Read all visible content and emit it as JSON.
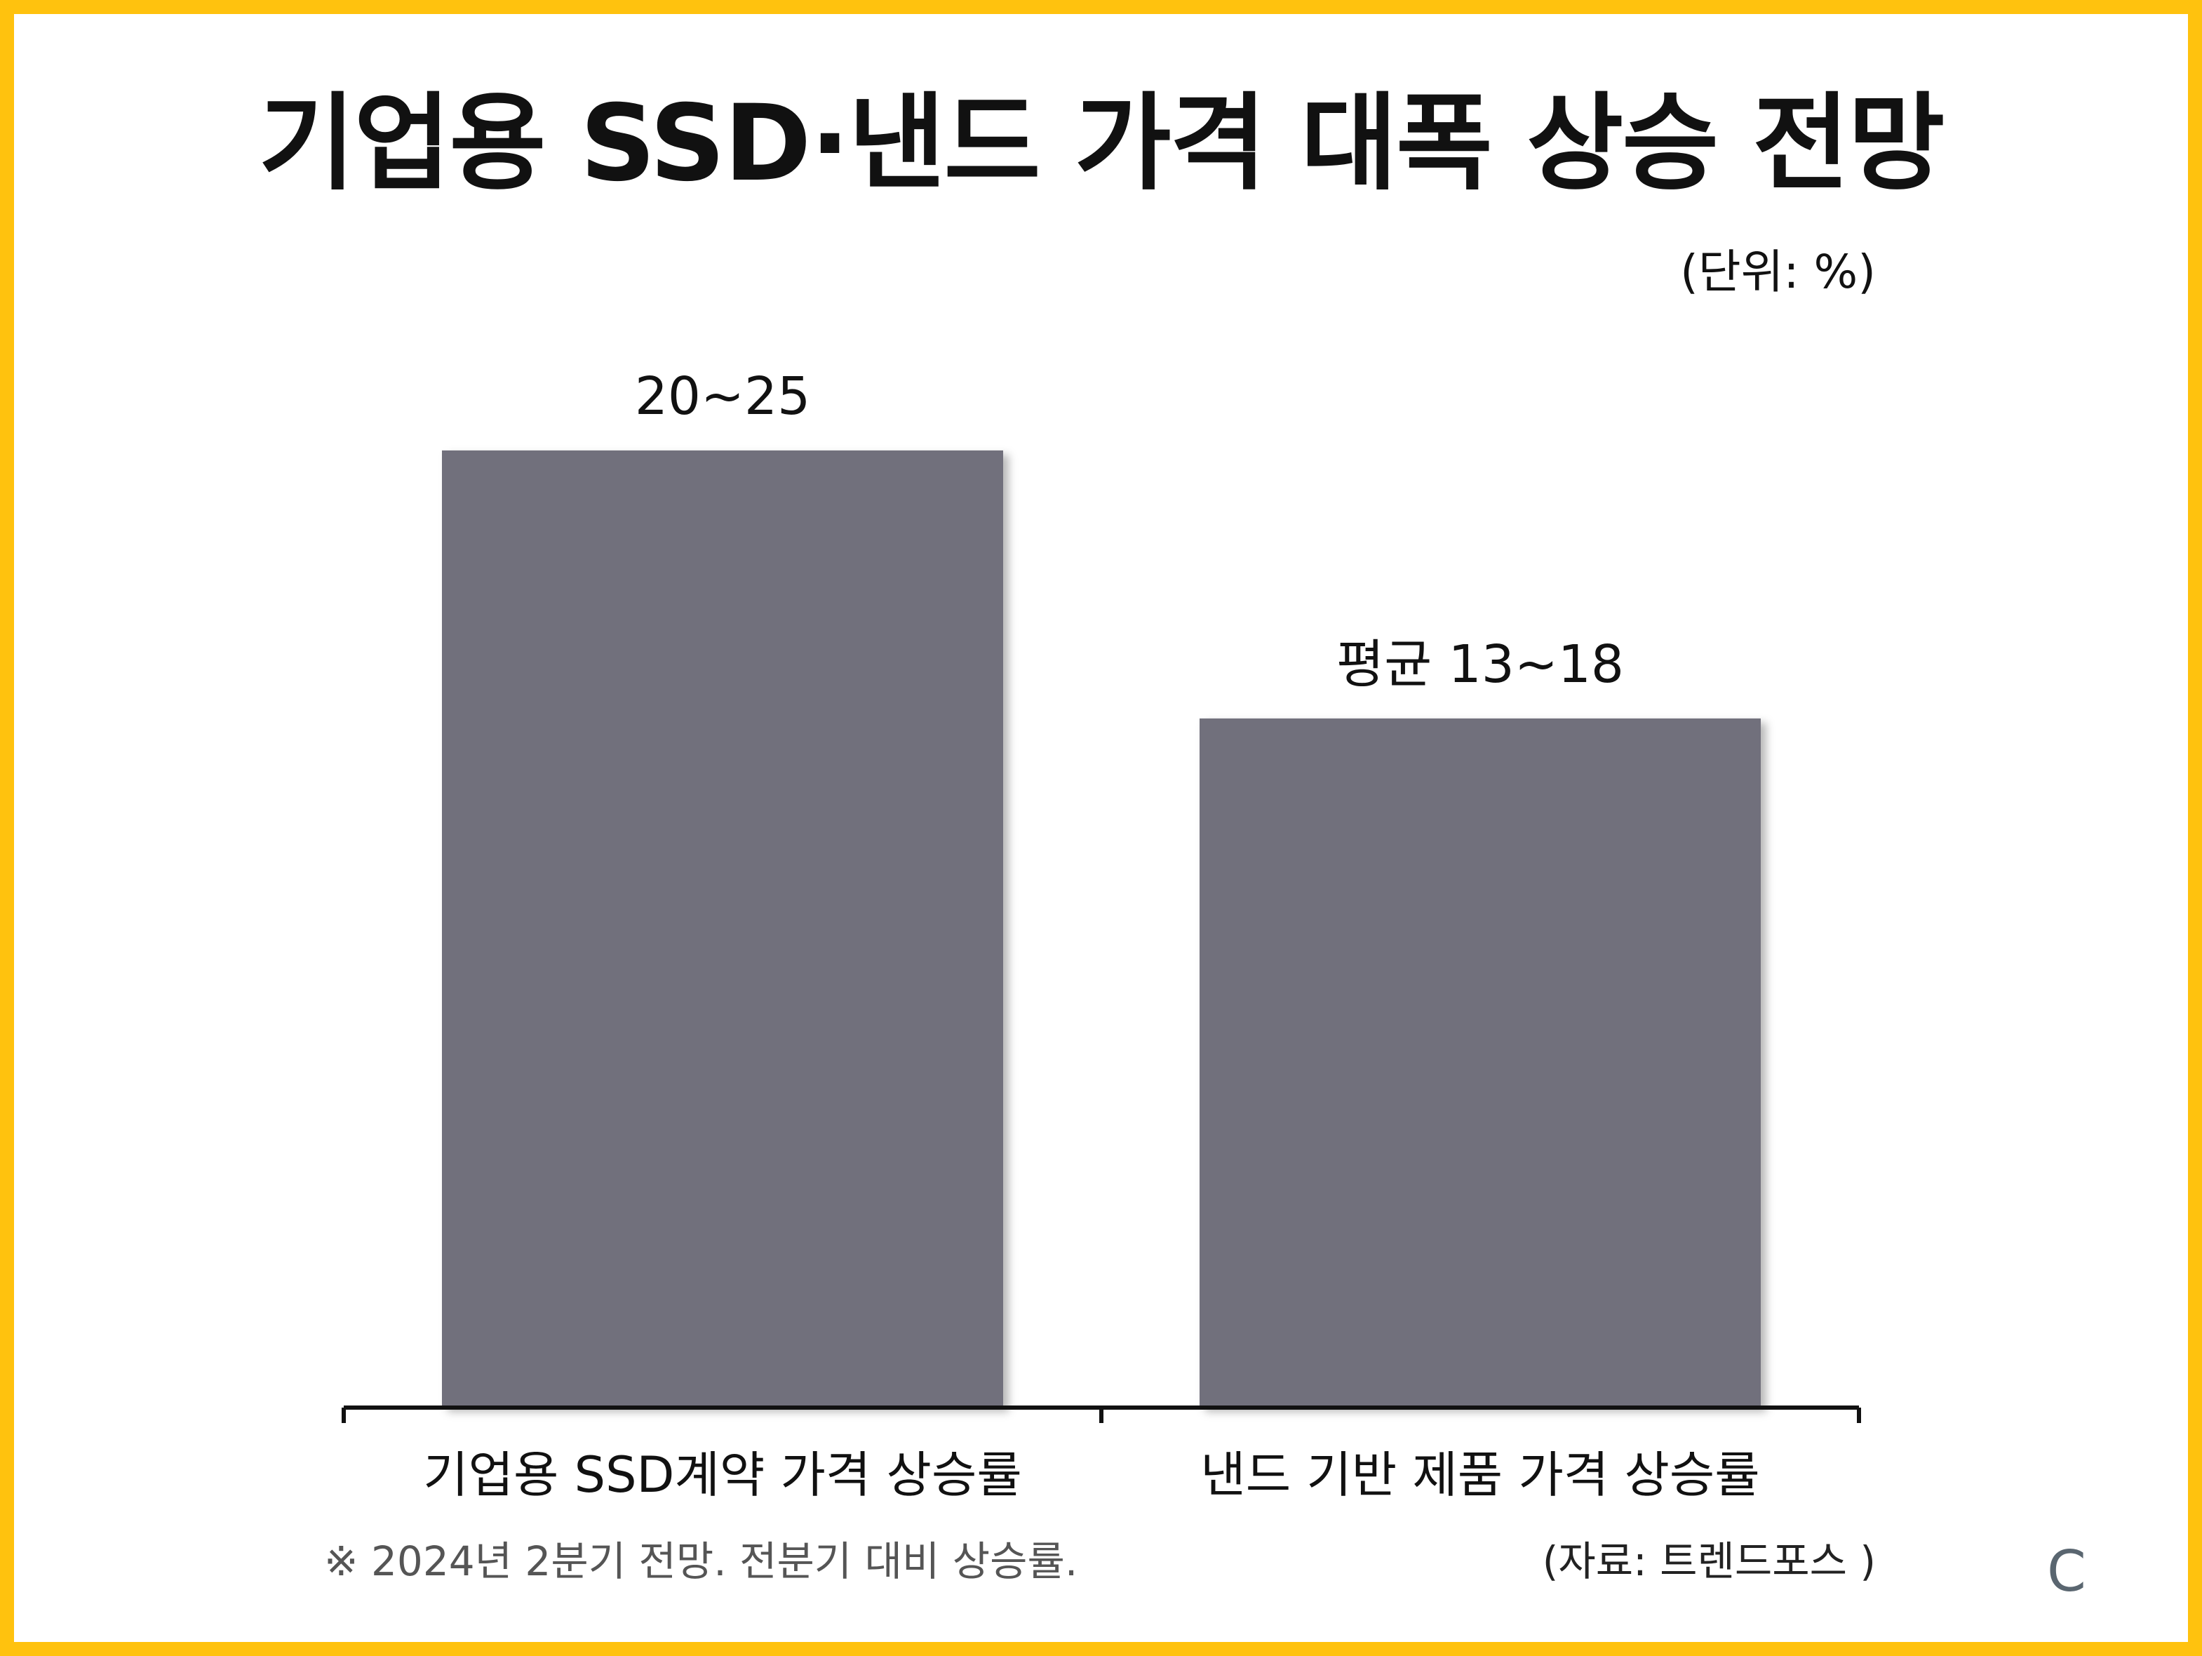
{
  "chart_data": {
    "type": "bar",
    "title": "기업용 SSD·낸드 가격 대폭 상승 전망",
    "unit_label": "(단위: %)",
    "categories": [
      "기업용 SSD계약 가격 상승률",
      "낸드 기반 제품 가격 상승률"
    ],
    "values": [
      25,
      18
    ],
    "value_labels": [
      "20~25",
      "평균 13~18"
    ],
    "ylim": [
      0,
      32
    ],
    "bar_color": "#71707B",
    "axis_color": "#111111",
    "grid": false,
    "legend": "none"
  },
  "footnote": "※ 2024년 2분기 전망. 전분기 대비 상승률.",
  "source": "(자료: 트렌드포스 )",
  "logo_text": "C",
  "frame_color": "#FFC20E"
}
